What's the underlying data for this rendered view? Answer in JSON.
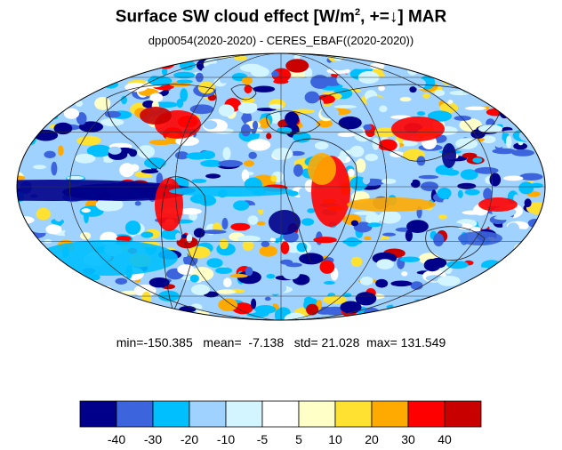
{
  "title": {
    "main": "Surface SW cloud effect [W/m",
    "superscript": "2",
    "suffix": ", +=↓]  MAR"
  },
  "subtitle": "dpp0054(2020-2020) - CERES_EBAF((2020-2020))",
  "stats": {
    "min_label": "min=",
    "min": "-150.385",
    "mean_label": "mean=",
    "mean": "-7.138",
    "std_label": "std=",
    "std": "21.028",
    "max_label": "max=",
    "max": "131.549"
  },
  "colorbar": {
    "colors": [
      "#00008b",
      "#3c64dc",
      "#00bfff",
      "#a0d2ff",
      "#d2f5ff",
      "#ffffff",
      "#ffffc8",
      "#ffe132",
      "#ffaa00",
      "#ff0000",
      "#c80000"
    ],
    "tick_labels": [
      "-40",
      "-30",
      "-20",
      "-10",
      "-5",
      "5",
      "10",
      "20",
      "30",
      "40"
    ]
  },
  "map": {
    "projection": "Mollweide",
    "grid": true
  }
}
